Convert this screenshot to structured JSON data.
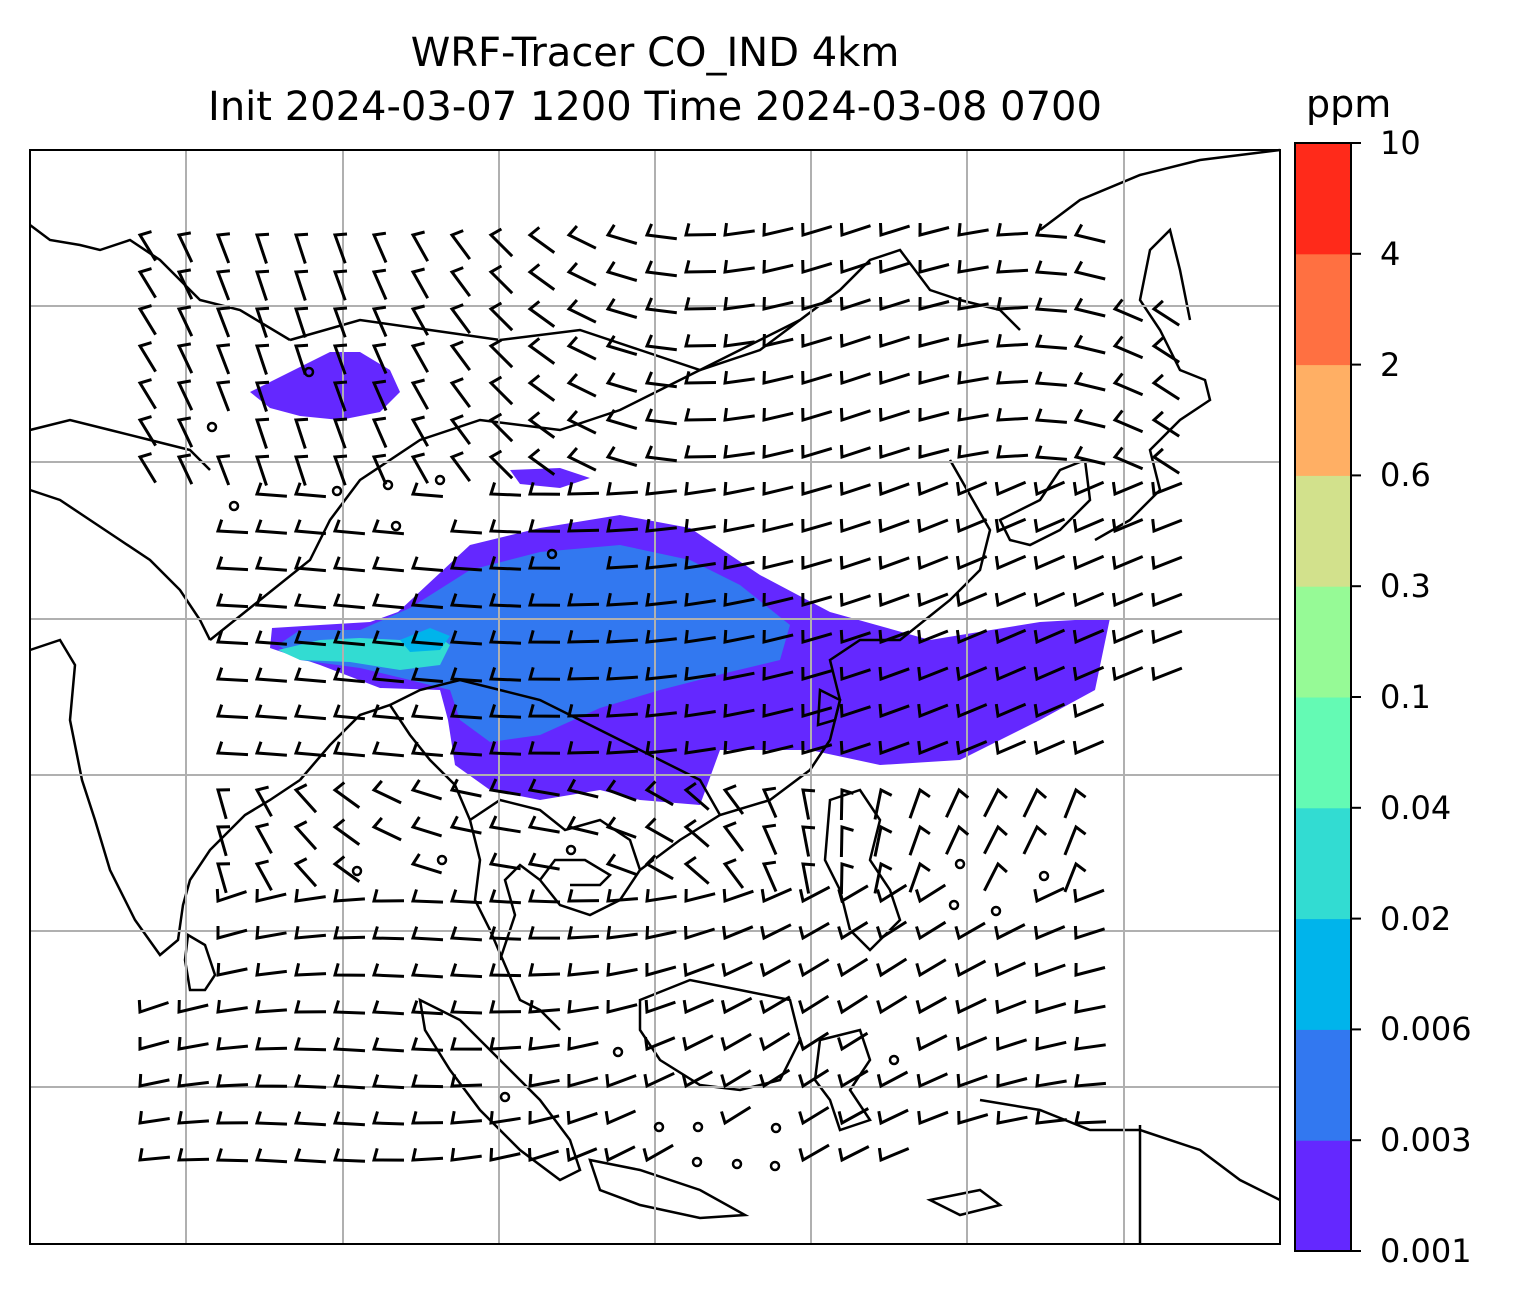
{
  "title_line1": "WRF-Tracer CO_IND 4km",
  "title_line2": "Init 2024-03-07 1200 Time 2024-03-08 0700",
  "colorbar": {
    "unit": "ppm",
    "ticks": [
      "0.001",
      "0.003",
      "0.006",
      "0.02",
      "0.04",
      "0.1",
      "0.3",
      "0.6",
      "2",
      "4",
      "10"
    ],
    "colors": [
      "#6428ff",
      "#3278f0",
      "#00b4eb",
      "#32dcd2",
      "#64fab4",
      "#96fa96",
      "#d2e18c",
      "#ffaf64",
      "#ff7041",
      "#ff2a1a"
    ]
  },
  "field_colors": {
    "low": "#6428ff",
    "mid": "#3278f0",
    "high": "#32dcd2"
  },
  "gridlines": true
}
